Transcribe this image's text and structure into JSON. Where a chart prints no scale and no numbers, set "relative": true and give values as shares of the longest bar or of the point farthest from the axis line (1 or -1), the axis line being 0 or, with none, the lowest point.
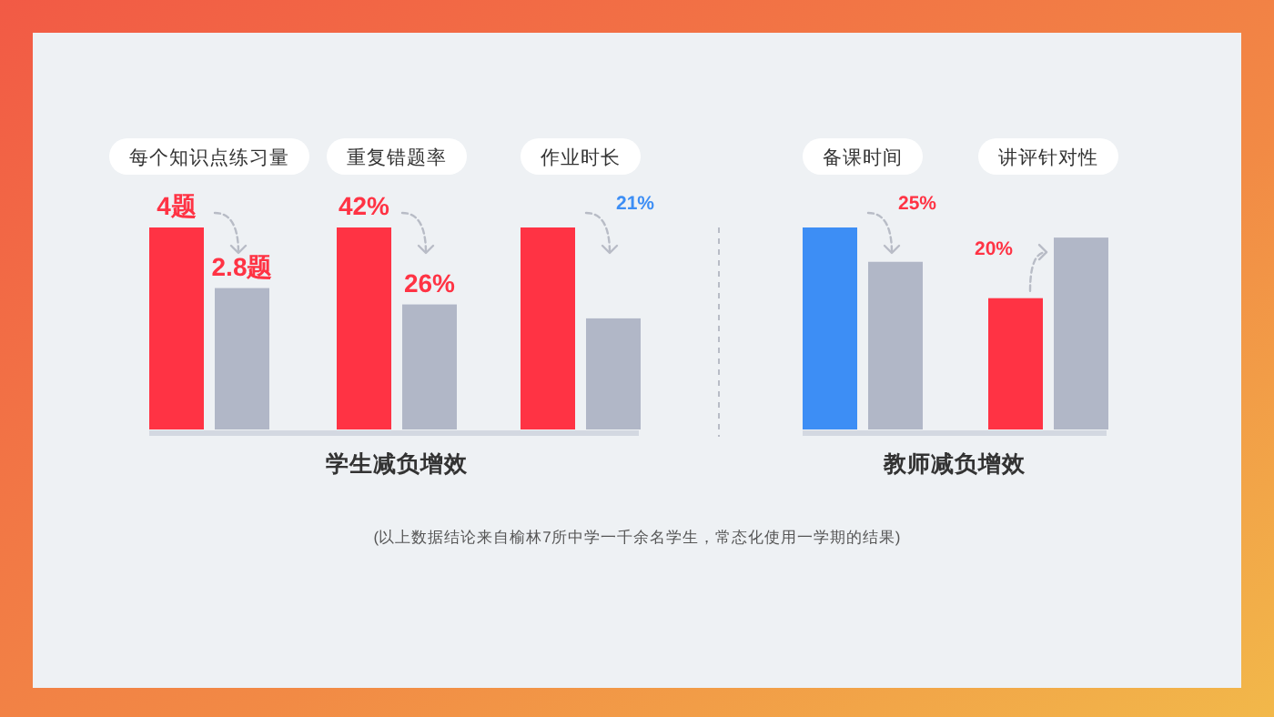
{
  "chart_data": [
    {
      "type": "bar",
      "categories": [
        "每个知识点练习量"
      ],
      "series": [
        {
          "colors": [
            "#ff3344"
          ],
          "values": [
            4
          ],
          "value_labels": [
            "4题"
          ]
        },
        {
          "color": "#b1b7c7",
          "values": [
            2.8
          ],
          "value_labels": [
            "2.8题"
          ]
        }
      ]
    },
    {
      "type": "bar",
      "categories": [
        "重复错题率"
      ],
      "xlabel": "学生减负增效",
      "series": [
        {
          "colors": [
            "#ff3344"
          ],
          "values": [
            42
          ],
          "value_labels": [
            "42%"
          ]
        },
        {
          "color": "#b1b7c7",
          "values": [
            26
          ],
          "value_labels": [
            "26%"
          ]
        }
      ]
    },
    {
      "type": "bar",
      "relative": true,
      "categories": [
        "作业时长"
      ],
      "series": [
        {
          "colors": [
            "#ff3344"
          ],
          "values": [
            1
          ]
        },
        {
          "color": "#b1b7c7",
          "values": [
            0.55
          ]
        }
      ],
      "annotations": [
        "21%"
      ]
    },
    {
      "type": "bar",
      "relative": true,
      "categories": [
        "备课时间",
        "讲评针对性"
      ],
      "xlabel": "教师减负增效",
      "series": [
        {
          "colors": [
            "#3d8ef5",
            "#ff3344"
          ],
          "values": [
            1,
            0.65
          ]
        },
        {
          "color": "#b1b7c7",
          "values": [
            0.83,
            0.95
          ]
        }
      ],
      "annotations": [
        "25%",
        "20%",
        "(以上数据结论来自榆林7所中学一千余名学生，常态化使用一学期的结果)"
      ]
    }
  ]
}
